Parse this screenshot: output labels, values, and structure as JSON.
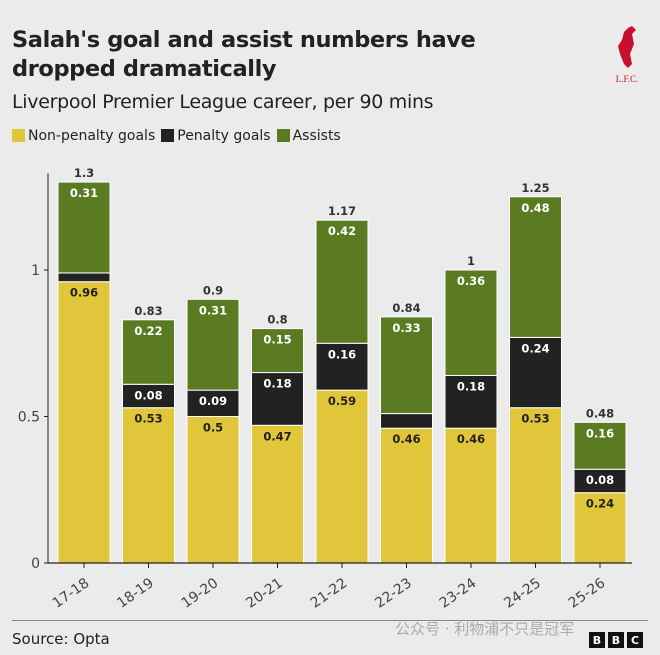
{
  "title": "Salah's goal and assist numbers have dropped dramatically",
  "subtitle": "Liverpool Premier League career, per 90 mins",
  "logo_text": "L.F.C.",
  "source": "Source: Opta",
  "watermark": "公众号 · 利物浦不只是冠军",
  "bbc_letters": [
    "B",
    "B",
    "C"
  ],
  "colors": {
    "non_penalty": "#e1c53a",
    "penalty": "#222222",
    "assists": "#5b7b22",
    "background": "#ebebeb"
  },
  "chart_data": {
    "type": "bar",
    "stacked": true,
    "categories": [
      "17-18",
      "18-19",
      "19-20",
      "20-21",
      "21-22",
      "22-23",
      "23-24",
      "24-25",
      "25-26"
    ],
    "series": [
      {
        "name": "Non-penalty goals",
        "values": [
          0.96,
          0.53,
          0.5,
          0.47,
          0.59,
          0.46,
          0.46,
          0.53,
          0.24
        ],
        "labels": [
          "0.96",
          "0.53",
          "0.5",
          "0.47",
          "0.59",
          "0.46",
          "0.46",
          "0.53",
          "0.24"
        ]
      },
      {
        "name": "Penalty goals",
        "values": [
          0.03,
          0.08,
          0.09,
          0.18,
          0.16,
          0.05,
          0.18,
          0.24,
          0.08
        ],
        "labels": [
          "",
          "0.08",
          "0.09",
          "0.18",
          "0.16",
          "",
          "0.18",
          "0.24",
          "0.08"
        ]
      },
      {
        "name": "Assists",
        "values": [
          0.31,
          0.22,
          0.31,
          0.15,
          0.42,
          0.33,
          0.36,
          0.48,
          0.16
        ],
        "labels": [
          "0.31",
          "0.22",
          "0.31",
          "0.15",
          "0.42",
          "0.33",
          "0.36",
          "0.48",
          "0.16"
        ]
      }
    ],
    "totals": [
      "1.3",
      "0.83",
      "0.9",
      "0.8",
      "1.17",
      "0.84",
      "1",
      "1.25",
      "0.48"
    ],
    "yticks": [
      0,
      0.5,
      1
    ],
    "ytick_labels": [
      "0",
      "0.5",
      "1"
    ],
    "ylim": [
      0,
      1.33
    ],
    "legend": "top-left",
    "grid": false
  }
}
